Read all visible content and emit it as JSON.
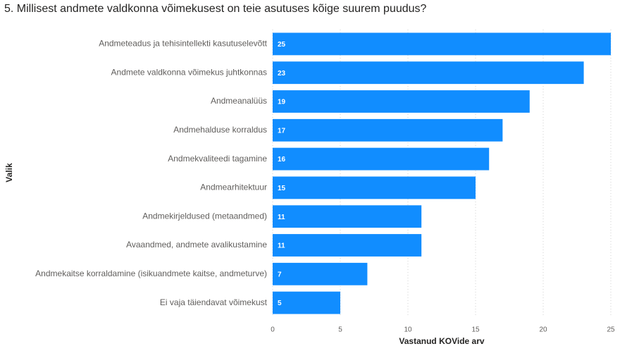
{
  "chart_data": {
    "type": "bar",
    "orientation": "horizontal",
    "title": "5. Millisest andmete valdkonna võimekusest on teie asutuses kõige suurem puudus?",
    "x_label": "Vastanud KOVide arv",
    "y_label": "Valik",
    "categories": [
      "Andmeteadus ja tehisintellekti kasutuselevõtt",
      "Andmete valdkonna võimekus juhtkonnas",
      "Andmeanalüüs",
      "Andmehalduse korraldus",
      "Andmekvaliteedi tagamine",
      "Andmearhitektuur",
      "Andmekirjeldused (metaandmed)",
      "Avaandmed, andmete avalikustamine",
      "Andmekaitse korraldamine (isikuandmete kaitse, andmeturve)",
      "Ei vaja täiendavat võimekust"
    ],
    "values": [
      25,
      23,
      19,
      17,
      16,
      15,
      11,
      11,
      7,
      5
    ],
    "color": "#118dff",
    "xlim": [
      0,
      25
    ],
    "xticks": [
      0,
      5,
      10,
      15,
      20,
      25
    ],
    "grid": true
  }
}
